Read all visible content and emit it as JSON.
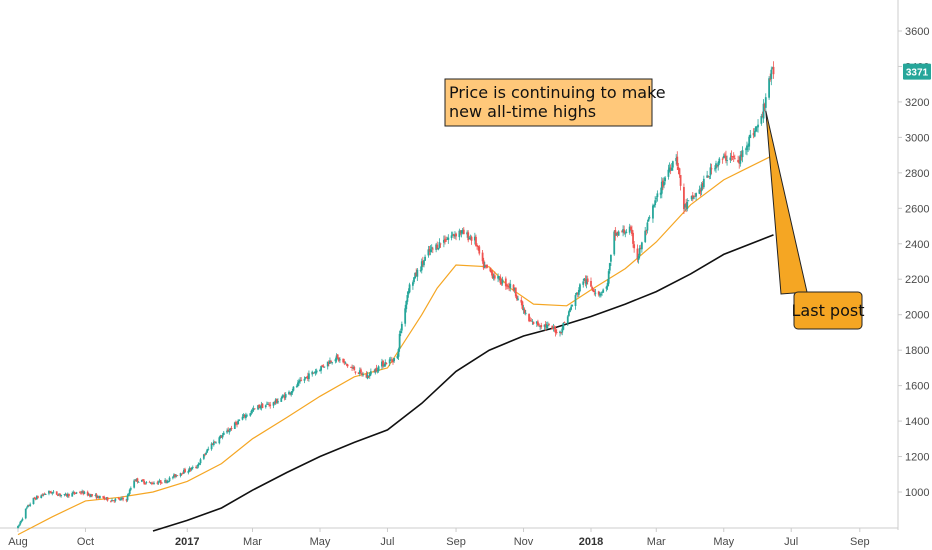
{
  "chart_data": {
    "type": "candlestick",
    "title": "",
    "xlabel": "",
    "ylabel": "",
    "x_ticks": [
      "Aug",
      "Oct",
      "2017",
      "Mar",
      "May",
      "Jul",
      "Sep",
      "Nov",
      "2018",
      "Mar",
      "May",
      "Jul",
      "Sep"
    ],
    "y_ticks": [
      1000,
      1200,
      1400,
      1600,
      1800,
      2000,
      2200,
      2400,
      2600,
      2800,
      3000,
      3200,
      3400,
      3600
    ],
    "ylim": [
      780,
      3700
    ],
    "grid": false,
    "last_price": "3371",
    "price_path": [
      [
        "2016-08-01",
        800
      ],
      [
        "2016-08-08",
        900
      ],
      [
        "2016-08-15",
        960
      ],
      [
        "2016-08-29",
        1000
      ],
      [
        "2016-09-12",
        980
      ],
      [
        "2016-09-26",
        1000
      ],
      [
        "2016-10-10",
        975
      ],
      [
        "2016-10-24",
        955
      ],
      [
        "2016-11-07",
        960
      ],
      [
        "2016-11-14",
        1070
      ],
      [
        "2016-11-28",
        1050
      ],
      [
        "2016-12-12",
        1060
      ],
      [
        "2016-12-26",
        1110
      ],
      [
        "2017-01-09",
        1140
      ],
      [
        "2017-01-23",
        1270
      ],
      [
        "2017-02-06",
        1340
      ],
      [
        "2017-02-20",
        1420
      ],
      [
        "2017-03-06",
        1480
      ],
      [
        "2017-03-20",
        1500
      ],
      [
        "2017-04-03",
        1560
      ],
      [
        "2017-04-17",
        1640
      ],
      [
        "2017-05-01",
        1700
      ],
      [
        "2017-05-15",
        1760
      ],
      [
        "2017-05-29",
        1700
      ],
      [
        "2017-06-12",
        1650
      ],
      [
        "2017-06-26",
        1720
      ],
      [
        "2017-07-10",
        1760
      ],
      [
        "2017-07-12",
        1880
      ],
      [
        "2017-07-20",
        2150
      ],
      [
        "2017-08-07",
        2350
      ],
      [
        "2017-08-21",
        2420
      ],
      [
        "2017-09-04",
        2470
      ],
      [
        "2017-09-18",
        2420
      ],
      [
        "2017-09-25",
        2280
      ],
      [
        "2017-10-09",
        2200
      ],
      [
        "2017-10-23",
        2150
      ],
      [
        "2017-10-30",
        2050
      ],
      [
        "2017-11-06",
        1960
      ],
      [
        "2017-11-20",
        1940
      ],
      [
        "2017-12-04",
        1900
      ],
      [
        "2017-12-11",
        2000
      ],
      [
        "2017-12-25",
        2200
      ],
      [
        "2018-01-08",
        2120
      ],
      [
        "2018-01-15",
        2150
      ],
      [
        "2018-01-22",
        2450
      ],
      [
        "2018-02-05",
        2480
      ],
      [
        "2018-02-12",
        2320
      ],
      [
        "2018-02-26",
        2600
      ],
      [
        "2018-03-12",
        2820
      ],
      [
        "2018-03-19",
        2900
      ],
      [
        "2018-03-26",
        2600
      ],
      [
        "2018-04-09",
        2700
      ],
      [
        "2018-04-23",
        2850
      ],
      [
        "2018-05-07",
        2900
      ],
      [
        "2018-05-14",
        2850
      ],
      [
        "2018-05-21",
        2960
      ],
      [
        "2018-06-04",
        3100
      ],
      [
        "2018-06-11",
        3330
      ],
      [
        "2018-06-15",
        3371
      ]
    ],
    "series": [
      {
        "name": "",
        "color": "#f5a623",
        "points": [
          [
            "2016-08-01",
            760
          ],
          [
            "2016-09-01",
            860
          ],
          [
            "2016-10-01",
            950
          ],
          [
            "2016-11-01",
            970
          ],
          [
            "2016-12-01",
            1000
          ],
          [
            "2017-01-01",
            1060
          ],
          [
            "2017-02-01",
            1160
          ],
          [
            "2017-03-01",
            1300
          ],
          [
            "2017-04-01",
            1420
          ],
          [
            "2017-05-01",
            1540
          ],
          [
            "2017-06-01",
            1650
          ],
          [
            "2017-07-01",
            1700
          ],
          [
            "2017-08-01",
            2000
          ],
          [
            "2017-08-15",
            2150
          ],
          [
            "2017-09-01",
            2280
          ],
          [
            "2017-10-01",
            2270
          ],
          [
            "2017-10-20",
            2150
          ],
          [
            "2017-11-10",
            2060
          ],
          [
            "2017-12-10",
            2050
          ],
          [
            "2018-01-01",
            2140
          ],
          [
            "2018-02-01",
            2260
          ],
          [
            "2018-03-01",
            2410
          ],
          [
            "2018-04-01",
            2620
          ],
          [
            "2018-05-01",
            2760
          ],
          [
            "2018-05-20",
            2820
          ],
          [
            "2018-06-15",
            2900
          ]
        ]
      },
      {
        "name": "",
        "color": "#111111",
        "points": [
          [
            "2016-12-01",
            780
          ],
          [
            "2017-01-01",
            840
          ],
          [
            "2017-02-01",
            910
          ],
          [
            "2017-03-01",
            1010
          ],
          [
            "2017-04-01",
            1110
          ],
          [
            "2017-05-01",
            1200
          ],
          [
            "2017-06-01",
            1280
          ],
          [
            "2017-07-01",
            1350
          ],
          [
            "2017-08-01",
            1500
          ],
          [
            "2017-09-01",
            1680
          ],
          [
            "2017-10-01",
            1800
          ],
          [
            "2017-11-01",
            1880
          ],
          [
            "2017-12-01",
            1930
          ],
          [
            "2018-01-01",
            1990
          ],
          [
            "2018-02-01",
            2060
          ],
          [
            "2018-03-01",
            2130
          ],
          [
            "2018-04-01",
            2230
          ],
          [
            "2018-05-01",
            2340
          ],
          [
            "2018-06-15",
            2450
          ]
        ]
      }
    ],
    "annotations": [
      {
        "text_lines": [
          "Price is continuing to make",
          "new all-time highs"
        ],
        "fill": "#ffc87a"
      },
      {
        "text": "Last post",
        "fill": "#f5a623",
        "points_to": [
          "2018-06-08",
          3150
        ]
      }
    ],
    "colors": {
      "up": "#26a69a",
      "down": "#ef5350",
      "axis": "#cccccc",
      "tick_text": "#4a4a4a",
      "badge": "#26a69a"
    }
  }
}
